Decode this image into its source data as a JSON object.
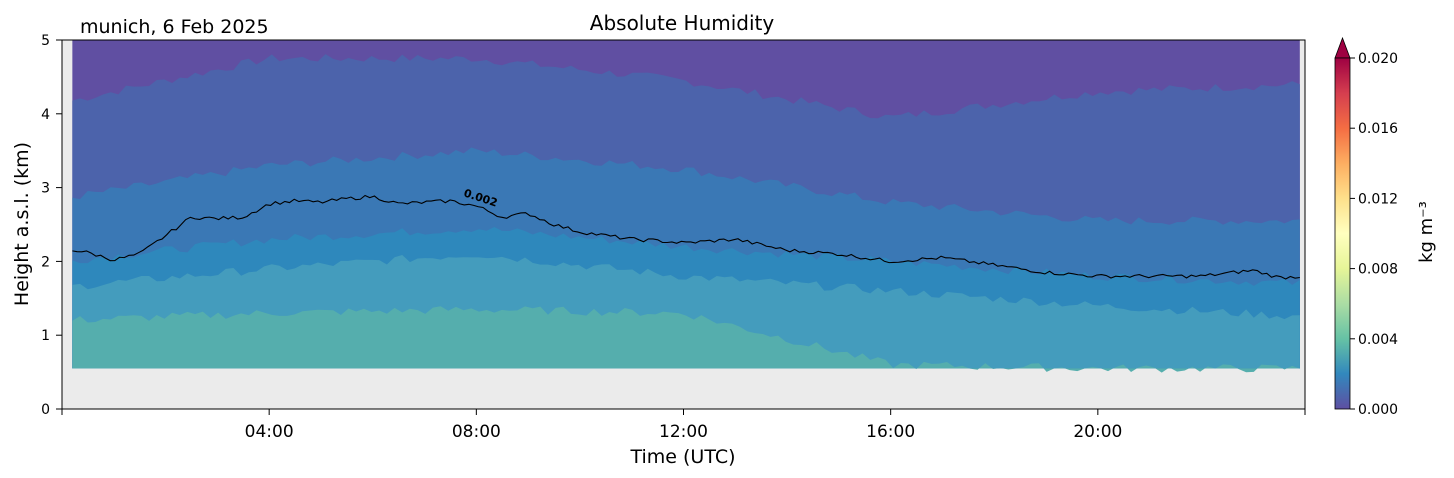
{
  "chart_data": {
    "type": "heatmap",
    "title": "Absolute Humidity",
    "location_label": "munich, 6 Feb 2025",
    "xlabel": "Time (UTC)",
    "ylabel": "Height a.s.l. (km)",
    "xlim_hours": [
      0,
      24
    ],
    "ylim": [
      0,
      5
    ],
    "x_ticks": [
      "04:00",
      "08:00",
      "12:00",
      "16:00",
      "20:00"
    ],
    "x_tick_hours": [
      4,
      8,
      12,
      16,
      20
    ],
    "y_ticks": [
      "0",
      "1",
      "2",
      "3",
      "4",
      "5"
    ],
    "y_tick_values": [
      0,
      1,
      2,
      3,
      4,
      5
    ],
    "data_bottom_km": 0.55,
    "colorbar": {
      "label": "kg m⁻³",
      "ticks": [
        "0.000",
        "0.004",
        "0.008",
        "0.012",
        "0.016",
        "0.020"
      ],
      "tick_values": [
        0,
        0.004,
        0.008,
        0.012,
        0.016,
        0.02
      ],
      "range": [
        0,
        0.02
      ],
      "extend": "max",
      "colors": [
        "#5e4fa2",
        "#3288bd",
        "#66c2a5",
        "#abdda4",
        "#e6f598",
        "#ffffbf",
        "#fee08b",
        "#fdae61",
        "#f46d43",
        "#d53e4f",
        "#9e0142"
      ]
    },
    "contour": {
      "label": "0.002",
      "level": 0.002
    },
    "bands": [
      {
        "lower": 0.55,
        "fill": "#55aead",
        "upper_hours": [
          0,
          4,
          8,
          12,
          16,
          20,
          24
        ],
        "upper_km": [
          1.2,
          1.3,
          1.35,
          1.3,
          0.6,
          0.55,
          0.55
        ]
      },
      {
        "lower": 0.55,
        "fill": "#449cbd",
        "upper_hours": [
          0,
          4,
          8,
          12,
          16,
          20,
          24
        ],
        "upper_km": [
          1.65,
          1.9,
          2.1,
          1.8,
          1.6,
          1.4,
          1.25
        ]
      },
      {
        "lower": 0.55,
        "fill": "#2e88bc",
        "upper_hours": [
          0,
          4,
          8,
          12,
          16,
          20,
          24
        ],
        "upper_km": [
          2.0,
          2.3,
          2.45,
          2.2,
          2.0,
          1.8,
          1.7
        ]
      },
      {
        "lower": 0.55,
        "fill": "#3a78b5",
        "upper_hours": [
          0,
          4,
          8,
          12,
          16,
          20,
          24
        ],
        "upper_km": [
          2.85,
          3.3,
          3.5,
          3.25,
          2.8,
          2.55,
          2.55
        ]
      },
      {
        "lower": 0.55,
        "fill": "#4c63ab",
        "upper_hours": [
          0,
          4,
          8,
          12,
          16,
          20,
          24
        ],
        "upper_km": [
          4.15,
          4.75,
          4.75,
          4.45,
          3.95,
          4.3,
          4.4
        ]
      },
      {
        "lower": 0.55,
        "fill": "#604fa2",
        "upper_hours": [
          0,
          24
        ],
        "upper_km": [
          5.0,
          5.0
        ]
      }
    ],
    "contour_line": {
      "hours": [
        0,
        0.5,
        1,
        1.5,
        2,
        2.5,
        3,
        3.5,
        4,
        4.5,
        5,
        5.5,
        6,
        6.5,
        7,
        7.5,
        8,
        8.5,
        9,
        9.5,
        10,
        10.5,
        11,
        11.5,
        12,
        13,
        14,
        15,
        16,
        17,
        18,
        19,
        20,
        21,
        22,
        23,
        23.5,
        24
      ],
      "km": [
        2.18,
        2.12,
        2.02,
        2.1,
        2.35,
        2.6,
        2.58,
        2.6,
        2.78,
        2.82,
        2.8,
        2.85,
        2.88,
        2.78,
        2.8,
        2.82,
        2.75,
        2.6,
        2.65,
        2.5,
        2.4,
        2.35,
        2.3,
        2.28,
        2.25,
        2.3,
        2.15,
        2.1,
        2.0,
        2.05,
        1.95,
        1.85,
        1.8,
        1.8,
        1.8,
        1.88,
        1.78,
        1.8
      ]
    }
  }
}
